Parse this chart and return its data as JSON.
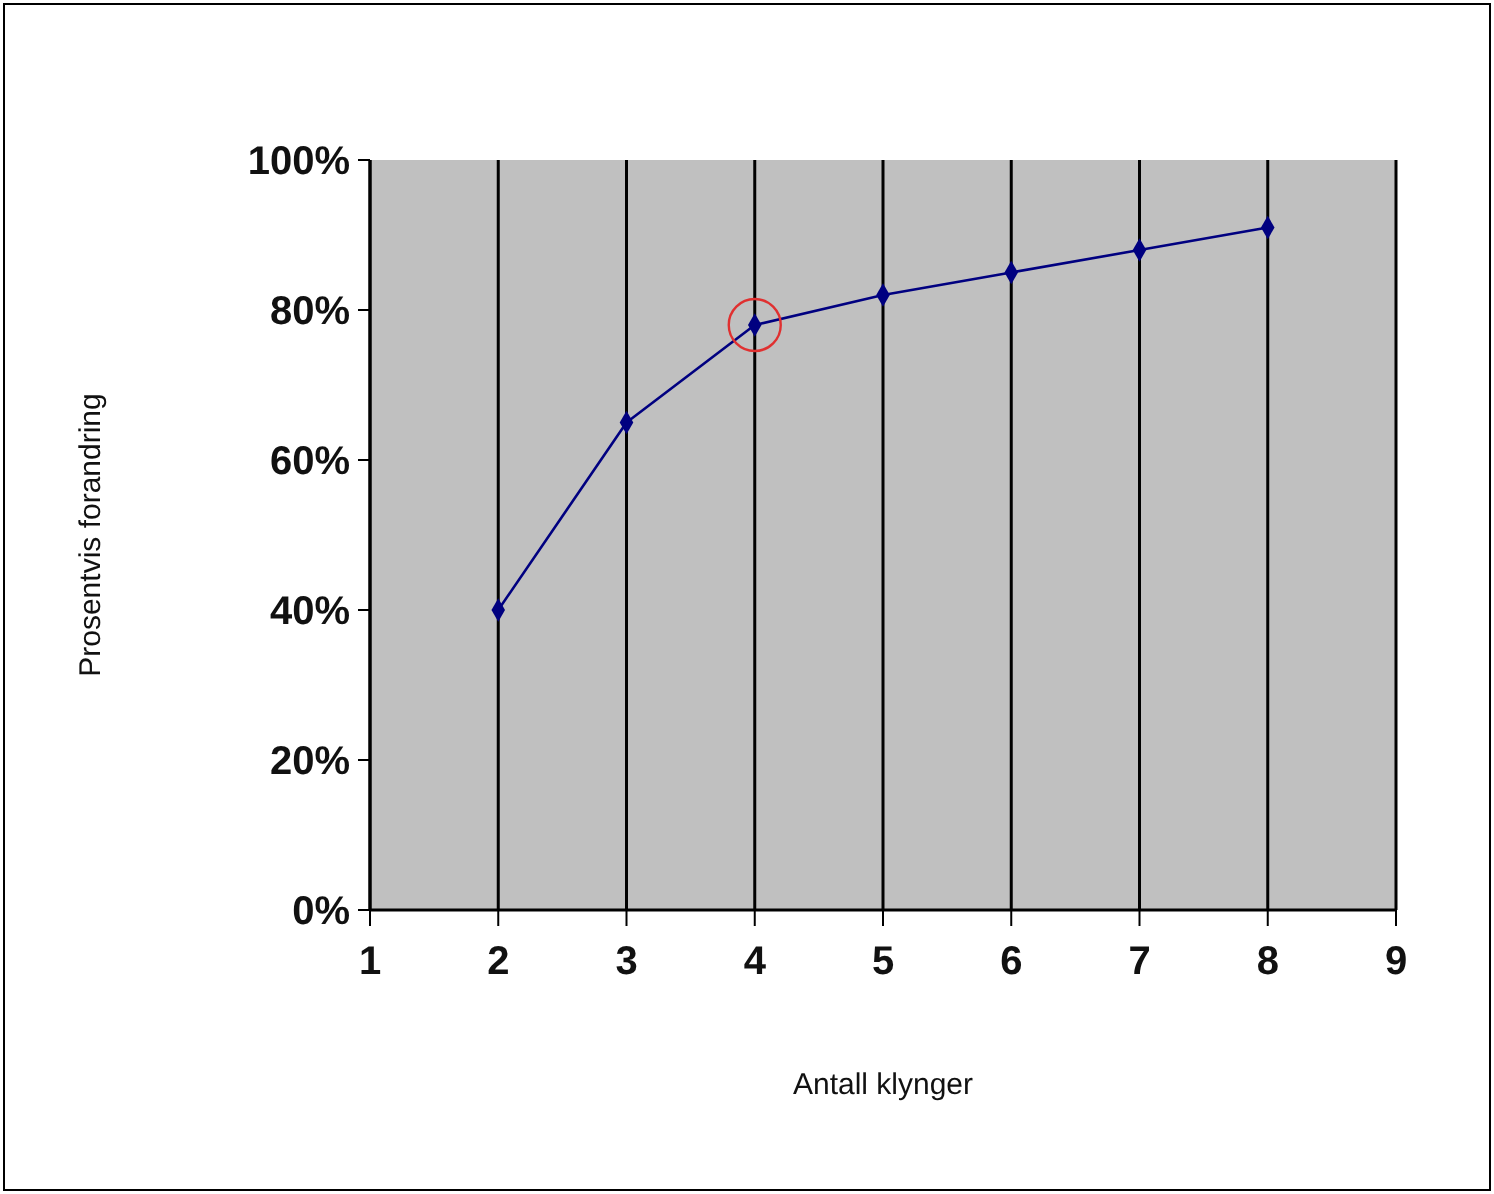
{
  "chart_data": {
    "type": "line",
    "xlabel": "Antall klynger",
    "ylabel": "Prosentvis forandring",
    "x": [
      2,
      3,
      4,
      5,
      6,
      7,
      8
    ],
    "series": [
      {
        "color": "#000080",
        "values": [
          40,
          65,
          78,
          82,
          85,
          88,
          91
        ]
      }
    ],
    "xlim": [
      1,
      9
    ],
    "xticks": [
      1,
      2,
      3,
      4,
      5,
      6,
      7,
      8,
      9
    ],
    "ylim": [
      0,
      100
    ],
    "yticks": [
      {
        "value": 0,
        "label": "0%"
      },
      {
        "value": 20,
        "label": "20%"
      },
      {
        "value": 40,
        "label": "40%"
      },
      {
        "value": 60,
        "label": "60%"
      },
      {
        "value": 80,
        "label": "80%"
      },
      {
        "value": 100,
        "label": "100%"
      }
    ],
    "grid": "x",
    "marker": "diamond",
    "line_style": "solid"
  }
}
